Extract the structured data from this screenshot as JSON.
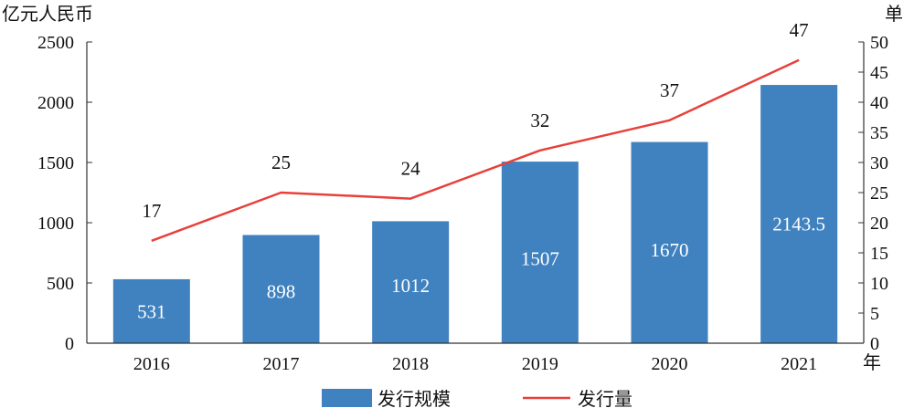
{
  "chart_data": {
    "type": "bar",
    "categories": [
      "2016",
      "2017",
      "2018",
      "2019",
      "2020",
      "2021"
    ],
    "series": [
      {
        "name": "发行规模",
        "type": "bar",
        "axis": "left",
        "values": [
          531,
          898,
          1012,
          1507,
          1670,
          2143.5
        ],
        "labels": [
          "531",
          "898",
          "1012",
          "1507",
          "1670",
          "2143.5"
        ],
        "color": "#3f82bf"
      },
      {
        "name": "发行量",
        "type": "line",
        "axis": "right",
        "values": [
          17,
          25,
          24,
          32,
          37,
          47
        ],
        "labels": [
          "17",
          "25",
          "24",
          "32",
          "37",
          "47"
        ],
        "color": "#e8403a"
      }
    ],
    "y_left": {
      "unit": "亿元人民币",
      "ylim": [
        0,
        2500
      ],
      "ticks": [
        "0",
        "500",
        "1000",
        "1500",
        "2000",
        "2500"
      ]
    },
    "y_right": {
      "unit": "单",
      "ylim": [
        0,
        50
      ],
      "ticks": [
        "0",
        "5",
        "10",
        "15",
        "20",
        "25",
        "30",
        "35",
        "40",
        "45",
        "50"
      ]
    },
    "x_unit": "年",
    "legend_position": "bottom",
    "grid": false
  }
}
